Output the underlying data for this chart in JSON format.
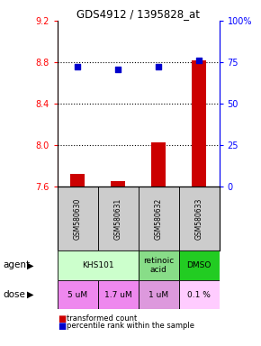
{
  "title": "GDS4912 / 1395828_at",
  "samples": [
    "GSM580630",
    "GSM580631",
    "GSM580632",
    "GSM580633"
  ],
  "bar_values": [
    7.72,
    7.65,
    8.02,
    8.82
  ],
  "scatter_values": [
    8.76,
    8.73,
    8.76,
    8.82
  ],
  "ylim_left": [
    7.6,
    9.2
  ],
  "ylim_right": [
    0,
    100
  ],
  "yticks_left": [
    7.6,
    8.0,
    8.4,
    8.8,
    9.2
  ],
  "yticks_right": [
    0,
    25,
    50,
    75,
    100
  ],
  "ytick_labels_right": [
    "0",
    "25",
    "50",
    "75",
    "100%"
  ],
  "hgrid_lines": [
    8.0,
    8.4,
    8.8
  ],
  "bar_color": "#cc0000",
  "scatter_color": "#0000cc",
  "agent_row": [
    {
      "label": "KHS101",
      "span": [
        0,
        2
      ],
      "color": "#ccffcc"
    },
    {
      "label": "retinoic\nacid",
      "span": [
        2,
        3
      ],
      "color": "#88dd88"
    },
    {
      "label": "DMSO",
      "span": [
        3,
        4
      ],
      "color": "#22cc22"
    }
  ],
  "dose_row": [
    {
      "label": "5 uM",
      "span": [
        0,
        1
      ],
      "color": "#ee88ee"
    },
    {
      "label": "1.7 uM",
      "span": [
        1,
        2
      ],
      "color": "#ee88ee"
    },
    {
      "label": "1 uM",
      "span": [
        2,
        3
      ],
      "color": "#dd99dd"
    },
    {
      "label": "0.1 %",
      "span": [
        3,
        4
      ],
      "color": "#ffccff"
    }
  ],
  "sample_bg": "#cccccc",
  "legend_bar_label": "transformed count",
  "legend_scatter_label": "percentile rank within the sample",
  "agent_label": "agent",
  "dose_label": "dose"
}
